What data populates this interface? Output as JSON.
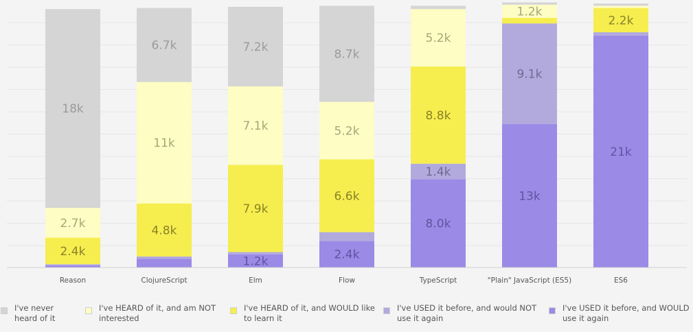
{
  "chart_data": {
    "type": "bar",
    "stacked": true,
    "categories": [
      "Reason",
      "ClojureScript",
      "Elm",
      "Flow",
      "TypeScript",
      "\"Plain\" JavaScript (ES5)",
      "ES6"
    ],
    "series": [
      {
        "name": "I've USED it before, and WOULD use it again",
        "color": "#9b8ae6",
        "label_color": "#5f55a0",
        "values": [
          0.2,
          0.8,
          1.2,
          2.4,
          8.0,
          13,
          21
        ],
        "labels": [
          "",
          "",
          "1.2k",
          "2.4k",
          "8.0k",
          "13k",
          "21k"
        ]
      },
      {
        "name": "I've USED it before, and would NOT use it again",
        "color": "#b2aadd",
        "label_color": "#6f6a90",
        "values": [
          0.1,
          0.2,
          0.2,
          0.8,
          1.4,
          9.1,
          0.3
        ],
        "labels": [
          "",
          "",
          "",
          "",
          "1.4k",
          "9.1k",
          ""
        ]
      },
      {
        "name": "I've HEARD of it, and WOULD like to learn it",
        "color": "#f6ee4f",
        "label_color": "#8a8226",
        "values": [
          2.4,
          4.8,
          7.9,
          6.6,
          8.8,
          0.5,
          2.2
        ],
        "labels": [
          "2.4k",
          "4.8k",
          "7.9k",
          "6.6k",
          "8.8k",
          "",
          "2.2k"
        ]
      },
      {
        "name": "I've HEARD of it, and am NOT interested",
        "color": "#fdfdc4",
        "label_color": "#a7a679",
        "values": [
          2.7,
          11,
          7.1,
          5.2,
          5.2,
          1.2,
          0.2
        ],
        "labels": [
          "2.7k",
          "11k",
          "7.1k",
          "5.2k",
          "5.2k",
          "1.2k",
          ""
        ]
      },
      {
        "name": "I've never heard of it",
        "color": "#d5d5d5",
        "label_color": "#9b9b9b",
        "values": [
          18,
          6.7,
          7.2,
          8.7,
          0.3,
          0.2,
          0.2
        ],
        "labels": [
          "18k",
          "6.7k",
          "7.2k",
          "8.7k",
          "",
          "",
          ""
        ]
      }
    ],
    "ylim": [
      0,
      23.6
    ],
    "grid": true,
    "legend_position": "bottom",
    "title": "",
    "xlabel": "",
    "ylabel": ""
  },
  "legend": [
    {
      "line1": "I've never",
      "line2": "heard of it",
      "color": "#d5d5d5"
    },
    {
      "line1": "I've HEARD of it, and am NOT",
      "line2": "interested",
      "color": "#fdfdc4"
    },
    {
      "line1": "I've HEARD of it, and WOULD like",
      "line2": "to learn it",
      "color": "#f6ee4f"
    },
    {
      "line1": "I've USED it before, and would NOT",
      "line2": "use it again",
      "color": "#b2aadd"
    },
    {
      "line1": "I've USED it before, and WOULD",
      "line2": "use it again",
      "color": "#9b8ae6"
    }
  ]
}
